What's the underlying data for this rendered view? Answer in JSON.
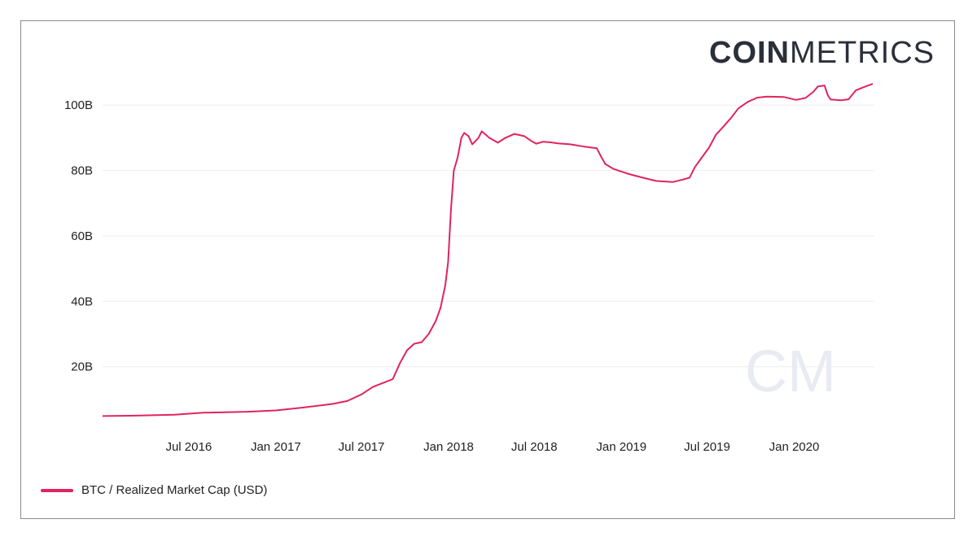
{
  "brand": {
    "part1": "COIN",
    "part2": "METRICS"
  },
  "watermark": "CM",
  "colors": {
    "series": "#e0245e",
    "grid": "#eeeeee",
    "watermark": "#e8ebf2"
  },
  "chart_data": {
    "type": "line",
    "title": "",
    "xlabel": "",
    "ylabel": "",
    "x_tick_labels": [
      "Jul 2016",
      "Jan 2017",
      "Jul 2017",
      "Jan 2018",
      "Jul 2018",
      "Jan 2019",
      "Jul 2019",
      "Jan 2020"
    ],
    "x_tick_dates": [
      "2016-07-01",
      "2017-01-01",
      "2017-07-01",
      "2018-01-01",
      "2018-07-01",
      "2019-01-01",
      "2019-07-01",
      "2020-01-01"
    ],
    "y_tick_labels": [
      "20B",
      "40B",
      "60B",
      "80B",
      "100B"
    ],
    "y_ticks": [
      20,
      40,
      60,
      80,
      100
    ],
    "xlim": [
      "2016-01-01",
      "2020-06-15"
    ],
    "ylim": [
      3,
      112
    ],
    "y_unit": "B",
    "grid": true,
    "legend_position": "bottom-left",
    "series": [
      {
        "name": "BTC / Realized Market Cap (USD)",
        "color": "#e0245e",
        "points": [
          [
            "2016-01-01",
            4.9
          ],
          [
            "2016-03-01",
            5.0
          ],
          [
            "2016-06-01",
            5.3
          ],
          [
            "2016-08-01",
            5.9
          ],
          [
            "2016-11-01",
            6.2
          ],
          [
            "2017-01-01",
            6.6
          ],
          [
            "2017-03-01",
            7.5
          ],
          [
            "2017-05-01",
            8.6
          ],
          [
            "2017-06-01",
            9.5
          ],
          [
            "2017-07-01",
            11.5
          ],
          [
            "2017-07-25",
            13.8
          ],
          [
            "2017-08-15",
            15.0
          ],
          [
            "2017-09-05",
            16.2
          ],
          [
            "2017-09-20",
            21.0
          ],
          [
            "2017-10-05",
            25.0
          ],
          [
            "2017-10-20",
            27.0
          ],
          [
            "2017-11-05",
            27.5
          ],
          [
            "2017-11-20",
            30.0
          ],
          [
            "2017-12-05",
            34.0
          ],
          [
            "2017-12-15",
            38.0
          ],
          [
            "2017-12-25",
            45.0
          ],
          [
            "2017-12-31",
            52.0
          ],
          [
            "2018-01-06",
            68.0
          ],
          [
            "2018-01-12",
            80.0
          ],
          [
            "2018-01-20",
            84.0
          ],
          [
            "2018-01-28",
            90.0
          ],
          [
            "2018-02-03",
            91.5
          ],
          [
            "2018-02-12",
            90.5
          ],
          [
            "2018-02-20",
            88.0
          ],
          [
            "2018-03-05",
            90.0
          ],
          [
            "2018-03-12",
            92.0
          ],
          [
            "2018-03-28",
            90.0
          ],
          [
            "2018-04-15",
            88.5
          ],
          [
            "2018-05-01",
            90.0
          ],
          [
            "2018-05-20",
            91.2
          ],
          [
            "2018-06-10",
            90.5
          ],
          [
            "2018-06-25",
            89.0
          ],
          [
            "2018-07-05",
            88.2
          ],
          [
            "2018-07-20",
            88.8
          ],
          [
            "2018-08-05",
            88.6
          ],
          [
            "2018-08-20",
            88.3
          ],
          [
            "2018-09-15",
            88.0
          ],
          [
            "2018-10-15",
            87.3
          ],
          [
            "2018-11-10",
            86.8
          ],
          [
            "2018-11-20",
            84.0
          ],
          [
            "2018-11-28",
            82.0
          ],
          [
            "2018-12-15",
            80.5
          ],
          [
            "2019-01-15",
            79.0
          ],
          [
            "2019-02-15",
            77.8
          ],
          [
            "2019-03-15",
            76.8
          ],
          [
            "2019-04-20",
            76.5
          ],
          [
            "2019-05-10",
            77.2
          ],
          [
            "2019-05-25",
            77.8
          ],
          [
            "2019-06-05",
            81.0
          ],
          [
            "2019-06-20",
            84.0
          ],
          [
            "2019-07-05",
            87.0
          ],
          [
            "2019-07-20",
            91.0
          ],
          [
            "2019-08-05",
            93.5
          ],
          [
            "2019-08-20",
            96.0
          ],
          [
            "2019-09-05",
            99.0
          ],
          [
            "2019-09-25",
            101.0
          ],
          [
            "2019-10-15",
            102.3
          ],
          [
            "2019-11-05",
            102.6
          ],
          [
            "2019-12-10",
            102.5
          ],
          [
            "2020-01-05",
            101.6
          ],
          [
            "2020-01-25",
            102.2
          ],
          [
            "2020-02-10",
            104.0
          ],
          [
            "2020-02-20",
            105.7
          ],
          [
            "2020-03-05",
            106.0
          ],
          [
            "2020-03-12",
            103.0
          ],
          [
            "2020-03-18",
            101.7
          ],
          [
            "2020-04-10",
            101.5
          ],
          [
            "2020-04-25",
            101.8
          ],
          [
            "2020-05-10",
            104.5
          ],
          [
            "2020-06-01",
            105.8
          ],
          [
            "2020-06-15",
            106.5
          ]
        ]
      }
    ]
  }
}
